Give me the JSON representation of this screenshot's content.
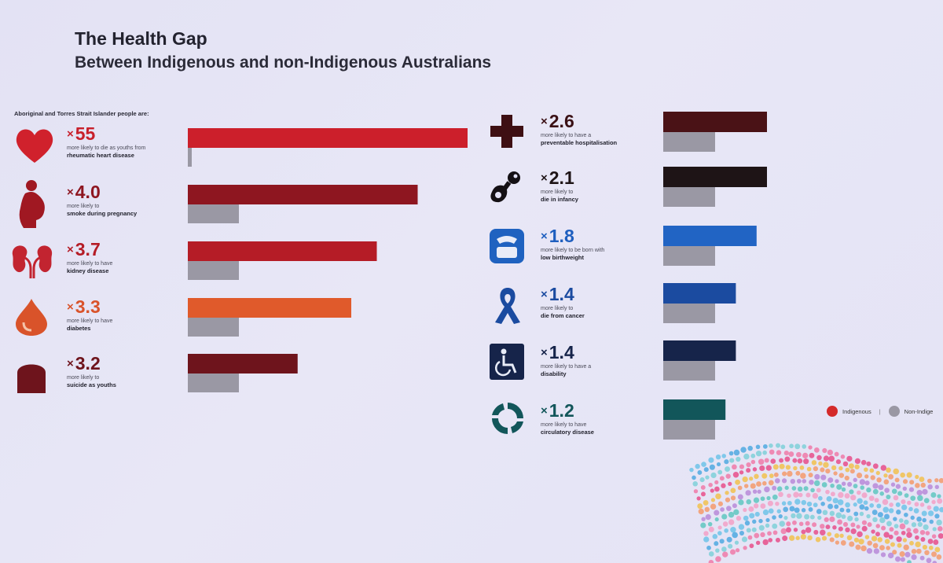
{
  "header": {
    "title": "The Health Gap",
    "subtitle": "Between Indigenous and non-Indigenous Australians",
    "intro": "Aboriginal and Torres Strait Islander people are:"
  },
  "legend": {
    "indigenous": "Indigenous",
    "separator": "|",
    "non_indigenous": "Non-Indige"
  },
  "left_items": [
    {
      "mult_prefix": "×",
      "mult_value": "55",
      "line1": "more likely to die as youths from",
      "line2": "rheumatic heart disease",
      "color": "#cc1f2b",
      "icon": "heart-icon"
    },
    {
      "mult_prefix": "×",
      "mult_value": "4.0",
      "line1": "more likely to",
      "line2": "smoke during pregnancy",
      "color": "#8e1620",
      "icon": "pregnant-woman-icon"
    },
    {
      "mult_prefix": "×",
      "mult_value": "3.7",
      "line1": "more likely to have",
      "line2": "kidney disease",
      "color": "#b51c26",
      "icon": "kidney-icon"
    },
    {
      "mult_prefix": "×",
      "mult_value": "3.3",
      "line1": "more likely to have",
      "line2": "diabetes",
      "color": "#e05a2b",
      "icon": "blood-drop-icon"
    },
    {
      "mult_prefix": "×",
      "mult_value": "3.2",
      "line1": "more likely to",
      "line2": "suicide as youths",
      "color": "#6e141c",
      "icon": "tombstone-icon"
    }
  ],
  "right_items": [
    {
      "mult_prefix": "×",
      "mult_value": "2.6",
      "line1": "more likely to have a",
      "line2": "preventable hospitalisation",
      "color": "#4a1216",
      "icon": "medical-cross-icon"
    },
    {
      "mult_prefix": "×",
      "mult_value": "2.1",
      "line1": "more likely to",
      "line2": "die in infancy",
      "color": "#1e1416",
      "icon": "pacifier-icon"
    },
    {
      "mult_prefix": "×",
      "mult_value": "1.8",
      "line1": "more likely to be born with",
      "line2": "low birthweight",
      "color": "#2164c4",
      "icon": "scale-icon"
    },
    {
      "mult_prefix": "×",
      "mult_value": "1.4",
      "line1": "more likely to",
      "line2": "die from cancer",
      "color": "#1b4ba0",
      "icon": "cancer-ribbon-icon"
    },
    {
      "mult_prefix": "×",
      "mult_value": "1.4",
      "line1": "more likely to have a",
      "line2": "disability",
      "color": "#16244a",
      "icon": "wheelchair-icon"
    },
    {
      "mult_prefix": "×",
      "mult_value": "1.2",
      "line1": "more likely to have",
      "line2": "circulatory disease",
      "color": "#12565a",
      "icon": "circulation-arrows-icon"
    }
  ],
  "chart_data": [
    {
      "type": "bar",
      "categories": [
        "rheumatic heart disease",
        "smoke during pregnancy",
        "kidney disease",
        "diabetes",
        "suicide as youths"
      ],
      "series": [
        {
          "name": "Indigenous",
          "values": [
            55,
            4.0,
            3.7,
            3.3,
            3.2
          ]
        },
        {
          "name": "Non-Indige",
          "values": [
            1,
            1,
            1,
            1,
            1
          ]
        }
      ],
      "bar_lengths_vs_nonindigenous": [
        55,
        4.5,
        3.7,
        3.2,
        2.15
      ],
      "note_bar_lengths": "visual bar lengths relative to the non-Indigenous bar"
    },
    {
      "type": "bar",
      "categories": [
        "preventable hospitalisation",
        "die in infancy",
        "low birthweight",
        "die from cancer",
        "disability",
        "circulatory disease"
      ],
      "series": [
        {
          "name": "Indigenous",
          "values": [
            2.6,
            2.1,
            1.8,
            1.4,
            1.4,
            1.2
          ]
        },
        {
          "name": "Non-Indige",
          "values": [
            1,
            1,
            1,
            1,
            1,
            1
          ]
        }
      ]
    }
  ]
}
